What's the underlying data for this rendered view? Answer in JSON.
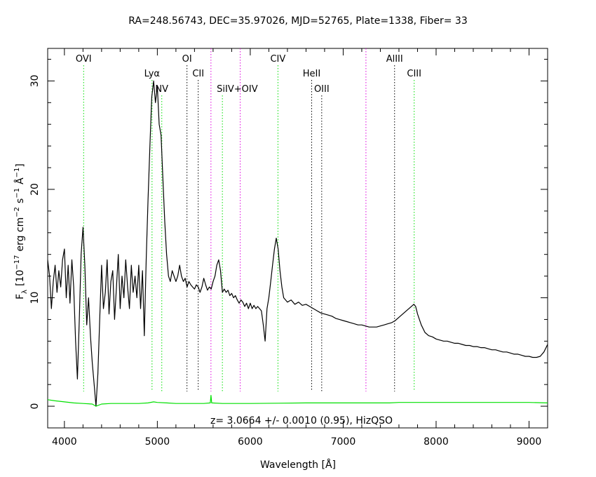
{
  "chart_data": {
    "type": "line",
    "title": "RA=248.56743, DEC=35.97026, MJD=52765, Plate=1338, Fiber= 33",
    "xlabel": "Wavelength [Å]",
    "ylabel": "F_λ [10^-17 erg cm^-2 s^-1 Å^-1]",
    "ylabel_parts": {
      "f": "F",
      "lambda_sub": "λ",
      "open": "[10",
      "exp_m17": "−17",
      "erg_cm": "erg cm",
      "exp_m2": "−2",
      "s": "s",
      "exp_m1a": "−1",
      "angstrom": "Å",
      "exp_m1b": "−1",
      "close": "]"
    },
    "xlim": [
      3820,
      9200
    ],
    "ylim": [
      -2,
      33
    ],
    "x_ticks": [
      4000,
      5000,
      6000,
      7000,
      8000,
      9000
    ],
    "x_tick_labels": [
      "4000",
      "5000",
      "6000",
      "7000",
      "8000",
      "9000"
    ],
    "y_ticks": [
      0,
      10,
      20,
      30
    ],
    "y_tick_labels": [
      "0",
      "10",
      "20",
      "30"
    ],
    "annotation": "z=  3.0664 +/-  0.0010 (0.95), HizQSO",
    "grid": false,
    "series": [
      {
        "color": "#000000",
        "points": [
          [
            3820,
            13.5
          ],
          [
            3840,
            12.0
          ],
          [
            3860,
            9.0
          ],
          [
            3880,
            11.5
          ],
          [
            3900,
            13.0
          ],
          [
            3920,
            10.5
          ],
          [
            3940,
            12.5
          ],
          [
            3960,
            11.0
          ],
          [
            3980,
            13.5
          ],
          [
            4000,
            14.5
          ],
          [
            4020,
            10.0
          ],
          [
            4040,
            13.0
          ],
          [
            4060,
            9.5
          ],
          [
            4080,
            13.5
          ],
          [
            4100,
            11.0
          ],
          [
            4120,
            6.0
          ],
          [
            4140,
            2.5
          ],
          [
            4160,
            8.0
          ],
          [
            4180,
            14.0
          ],
          [
            4200,
            16.5
          ],
          [
            4220,
            13.0
          ],
          [
            4240,
            7.5
          ],
          [
            4260,
            10.0
          ],
          [
            4280,
            6.5
          ],
          [
            4300,
            4.0
          ],
          [
            4320,
            2.0
          ],
          [
            4340,
            0.0
          ],
          [
            4360,
            3.0
          ],
          [
            4380,
            8.0
          ],
          [
            4400,
            13.0
          ],
          [
            4420,
            9.0
          ],
          [
            4440,
            10.5
          ],
          [
            4460,
            13.5
          ],
          [
            4480,
            8.5
          ],
          [
            4500,
            11.5
          ],
          [
            4520,
            12.5
          ],
          [
            4540,
            8.0
          ],
          [
            4560,
            11.0
          ],
          [
            4580,
            14.0
          ],
          [
            4600,
            9.0
          ],
          [
            4620,
            12.0
          ],
          [
            4640,
            10.0
          ],
          [
            4660,
            13.5
          ],
          [
            4680,
            11.0
          ],
          [
            4700,
            9.0
          ],
          [
            4720,
            13.0
          ],
          [
            4740,
            10.5
          ],
          [
            4760,
            12.0
          ],
          [
            4780,
            10.0
          ],
          [
            4800,
            13.0
          ],
          [
            4820,
            9.0
          ],
          [
            4840,
            12.5
          ],
          [
            4860,
            6.5
          ],
          [
            4880,
            13.5
          ],
          [
            4900,
            19.0
          ],
          [
            4920,
            24.0
          ],
          [
            4940,
            28.5
          ],
          [
            4960,
            30.0
          ],
          [
            4980,
            28.0
          ],
          [
            5000,
            29.5
          ],
          [
            5020,
            26.0
          ],
          [
            5040,
            25.0
          ],
          [
            5060,
            21.0
          ],
          [
            5080,
            17.0
          ],
          [
            5100,
            14.0
          ],
          [
            5120,
            12.0
          ],
          [
            5140,
            11.5
          ],
          [
            5160,
            12.5
          ],
          [
            5180,
            12.0
          ],
          [
            5200,
            11.5
          ],
          [
            5220,
            12.0
          ],
          [
            5240,
            13.0
          ],
          [
            5260,
            12.0
          ],
          [
            5280,
            11.5
          ],
          [
            5300,
            11.8
          ],
          [
            5320,
            11.0
          ],
          [
            5340,
            11.5
          ],
          [
            5360,
            11.2
          ],
          [
            5380,
            11.0
          ],
          [
            5400,
            10.8
          ],
          [
            5420,
            11.2
          ],
          [
            5440,
            11.0
          ],
          [
            5460,
            10.5
          ],
          [
            5480,
            11.0
          ],
          [
            5500,
            11.8
          ],
          [
            5520,
            11.2
          ],
          [
            5540,
            10.7
          ],
          [
            5560,
            11.0
          ],
          [
            5580,
            10.8
          ],
          [
            5600,
            11.5
          ],
          [
            5620,
            12.0
          ],
          [
            5640,
            13.0
          ],
          [
            5660,
            13.5
          ],
          [
            5680,
            12.5
          ],
          [
            5700,
            10.5
          ],
          [
            5720,
            10.8
          ],
          [
            5740,
            10.5
          ],
          [
            5760,
            10.7
          ],
          [
            5780,
            10.2
          ],
          [
            5800,
            10.4
          ],
          [
            5820,
            10.0
          ],
          [
            5840,
            10.2
          ],
          [
            5860,
            9.8
          ],
          [
            5880,
            9.5
          ],
          [
            5900,
            9.8
          ],
          [
            5920,
            9.6
          ],
          [
            5940,
            9.2
          ],
          [
            5960,
            9.5
          ],
          [
            5980,
            9.0
          ],
          [
            6000,
            9.5
          ],
          [
            6020,
            9.0
          ],
          [
            6040,
            9.3
          ],
          [
            6060,
            9.0
          ],
          [
            6080,
            9.2
          ],
          [
            6100,
            9.0
          ],
          [
            6120,
            8.8
          ],
          [
            6140,
            7.5
          ],
          [
            6160,
            6.0
          ],
          [
            6180,
            9.0
          ],
          [
            6200,
            10.0
          ],
          [
            6220,
            11.5
          ],
          [
            6240,
            13.0
          ],
          [
            6260,
            14.5
          ],
          [
            6280,
            15.5
          ],
          [
            6300,
            14.5
          ],
          [
            6320,
            12.5
          ],
          [
            6340,
            11.0
          ],
          [
            6360,
            10.0
          ],
          [
            6380,
            9.8
          ],
          [
            6400,
            9.6
          ],
          [
            6440,
            9.8
          ],
          [
            6480,
            9.4
          ],
          [
            6520,
            9.6
          ],
          [
            6560,
            9.3
          ],
          [
            6600,
            9.4
          ],
          [
            6640,
            9.2
          ],
          [
            6680,
            9.0
          ],
          [
            6720,
            8.8
          ],
          [
            6760,
            8.6
          ],
          [
            6800,
            8.5
          ],
          [
            6840,
            8.4
          ],
          [
            6880,
            8.3
          ],
          [
            6920,
            8.1
          ],
          [
            6960,
            8.0
          ],
          [
            7000,
            7.9
          ],
          [
            7040,
            7.8
          ],
          [
            7080,
            7.7
          ],
          [
            7120,
            7.6
          ],
          [
            7160,
            7.5
          ],
          [
            7200,
            7.5
          ],
          [
            7240,
            7.4
          ],
          [
            7280,
            7.3
          ],
          [
            7320,
            7.3
          ],
          [
            7360,
            7.3
          ],
          [
            7400,
            7.4
          ],
          [
            7440,
            7.5
          ],
          [
            7480,
            7.6
          ],
          [
            7520,
            7.7
          ],
          [
            7560,
            7.9
          ],
          [
            7600,
            8.2
          ],
          [
            7640,
            8.5
          ],
          [
            7680,
            8.8
          ],
          [
            7720,
            9.1
          ],
          [
            7760,
            9.4
          ],
          [
            7780,
            9.2
          ],
          [
            7800,
            8.5
          ],
          [
            7840,
            7.5
          ],
          [
            7880,
            6.8
          ],
          [
            7920,
            6.5
          ],
          [
            7960,
            6.4
          ],
          [
            8000,
            6.2
          ],
          [
            8040,
            6.1
          ],
          [
            8080,
            6.0
          ],
          [
            8120,
            6.0
          ],
          [
            8160,
            5.9
          ],
          [
            8200,
            5.8
          ],
          [
            8240,
            5.8
          ],
          [
            8280,
            5.7
          ],
          [
            8320,
            5.6
          ],
          [
            8360,
            5.6
          ],
          [
            8400,
            5.5
          ],
          [
            8440,
            5.5
          ],
          [
            8480,
            5.4
          ],
          [
            8520,
            5.4
          ],
          [
            8560,
            5.3
          ],
          [
            8600,
            5.2
          ],
          [
            8640,
            5.2
          ],
          [
            8680,
            5.1
          ],
          [
            8720,
            5.0
          ],
          [
            8760,
            5.0
          ],
          [
            8800,
            4.9
          ],
          [
            8840,
            4.8
          ],
          [
            8880,
            4.8
          ],
          [
            8920,
            4.7
          ],
          [
            8960,
            4.6
          ],
          [
            9000,
            4.6
          ],
          [
            9040,
            4.5
          ],
          [
            9080,
            4.5
          ],
          [
            9120,
            4.6
          ],
          [
            9160,
            5.0
          ],
          [
            9200,
            5.7
          ]
        ]
      },
      {
        "color": "#00e000",
        "points": [
          [
            3820,
            0.6
          ],
          [
            3900,
            0.5
          ],
          [
            4000,
            0.4
          ],
          [
            4100,
            0.3
          ],
          [
            4200,
            0.25
          ],
          [
            4300,
            0.2
          ],
          [
            4340,
            0.0
          ],
          [
            4400,
            0.2
          ],
          [
            4500,
            0.25
          ],
          [
            4600,
            0.25
          ],
          [
            4700,
            0.25
          ],
          [
            4800,
            0.25
          ],
          [
            4900,
            0.3
          ],
          [
            4960,
            0.4
          ],
          [
            5000,
            0.35
          ],
          [
            5100,
            0.3
          ],
          [
            5200,
            0.25
          ],
          [
            5300,
            0.25
          ],
          [
            5400,
            0.25
          ],
          [
            5500,
            0.25
          ],
          [
            5570,
            0.3
          ],
          [
            5577,
            1.0
          ],
          [
            5585,
            0.3
          ],
          [
            5700,
            0.25
          ],
          [
            5800,
            0.25
          ],
          [
            5900,
            0.25
          ],
          [
            6000,
            0.25
          ],
          [
            6300,
            0.28
          ],
          [
            6600,
            0.3
          ],
          [
            7000,
            0.3
          ],
          [
            7500,
            0.3
          ],
          [
            7600,
            0.35
          ],
          [
            8000,
            0.35
          ],
          [
            8500,
            0.35
          ],
          [
            9000,
            0.35
          ],
          [
            9200,
            0.3
          ]
        ]
      }
    ],
    "lines": [
      {
        "label": "OVI",
        "wavelength": 4207,
        "color": "#00e000",
        "row": 0,
        "anchor": "middle"
      },
      {
        "label": "Lyα",
        "wavelength": 4943,
        "color": "#00e000",
        "row": 1,
        "anchor": "middle"
      },
      {
        "label": "NV",
        "wavelength": 5048,
        "color": "#00e000",
        "row": 2,
        "anchor": "middle"
      },
      {
        "label": "OI",
        "wavelength": 5319,
        "color": "#000000",
        "row": 0,
        "anchor": "middle"
      },
      {
        "label": "CII",
        "wavelength": 5440,
        "color": "#000000",
        "row": 1,
        "anchor": "middle"
      },
      {
        "label": "",
        "wavelength": 5577,
        "color": "#e000e0",
        "row": 0,
        "anchor": "middle"
      },
      {
        "label": "SiIV+OIV",
        "wavelength": 5700,
        "color": "#00e000",
        "row": 2,
        "anchor": "start"
      },
      {
        "label": "",
        "wavelength": 5892,
        "color": "#e000e0",
        "row": 0,
        "anchor": "middle"
      },
      {
        "label": "CIV",
        "wavelength": 6298,
        "color": "#00e000",
        "row": 0,
        "anchor": "middle"
      },
      {
        "label": "HeII",
        "wavelength": 6661,
        "color": "#000000",
        "row": 1,
        "anchor": "middle"
      },
      {
        "label": "OIII",
        "wavelength": 6769,
        "color": "#000000",
        "row": 2,
        "anchor": "middle"
      },
      {
        "label": "",
        "wavelength": 7245,
        "color": "#e000e0",
        "row": 0,
        "anchor": "middle"
      },
      {
        "label": "AlIII",
        "wavelength": 7553,
        "color": "#000000",
        "row": 0,
        "anchor": "middle"
      },
      {
        "label": "CIII",
        "wavelength": 7764,
        "color": "#00e000",
        "row": 1,
        "anchor": "middle"
      }
    ]
  }
}
